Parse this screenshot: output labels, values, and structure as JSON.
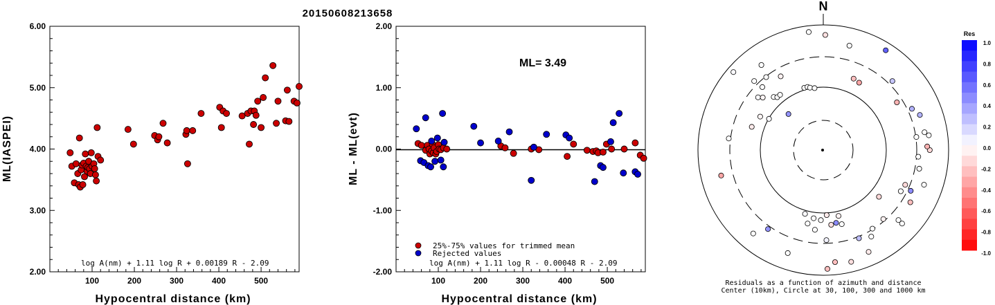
{
  "title": "20150608213658",
  "chart_data": [
    {
      "type": "scatter",
      "xlabel": "Hypocentral distance (km)",
      "ylabel": "ML(IASPEI)",
      "xlim": [
        0,
        590
      ],
      "ylim": [
        2.0,
        6.0
      ],
      "yticks": [
        "2.00",
        "3.00",
        "4.00",
        "5.00",
        "6.00"
      ],
      "xticks": [
        "100",
        "200",
        "300",
        "400",
        "500"
      ],
      "grid": false,
      "formula": "log A(nm) + 1.11 log R + 0.00189 R - 2.09",
      "marker_color": "#cc0000",
      "series": [
        {
          "points": [
            [
              48,
              3.94
            ],
            [
              52,
              3.72
            ],
            [
              58,
              3.45
            ],
            [
              62,
              3.76
            ],
            [
              66,
              3.6
            ],
            [
              68,
              3.42
            ],
            [
              70,
              4.18
            ],
            [
              72,
              3.38
            ],
            [
              74,
              3.66
            ],
            [
              76,
              3.74
            ],
            [
              78,
              3.42
            ],
            [
              80,
              3.77
            ],
            [
              82,
              3.55
            ],
            [
              84,
              3.92
            ],
            [
              86,
              3.72
            ],
            [
              88,
              3.64
            ],
            [
              90,
              3.7
            ],
            [
              92,
              3.8
            ],
            [
              94,
              3.68
            ],
            [
              96,
              3.6
            ],
            [
              98,
              3.94
            ],
            [
              100,
              3.72
            ],
            [
              104,
              3.76
            ],
            [
              106,
              3.68
            ],
            [
              108,
              3.58
            ],
            [
              110,
              3.48
            ],
            [
              112,
              4.35
            ],
            [
              114,
              3.88
            ],
            [
              120,
              3.82
            ],
            [
              185,
              4.32
            ],
            [
              198,
              4.08
            ],
            [
              248,
              4.22
            ],
            [
              255,
              4.15
            ],
            [
              258,
              4.2
            ],
            [
              268,
              4.42
            ],
            [
              278,
              4.1
            ],
            [
              322,
              4.24
            ],
            [
              324,
              4.3
            ],
            [
              326,
              3.76
            ],
            [
              338,
              4.3
            ],
            [
              358,
              4.58
            ],
            [
              402,
              4.68
            ],
            [
              406,
              4.35
            ],
            [
              410,
              4.62
            ],
            [
              418,
              4.58
            ],
            [
              455,
              4.54
            ],
            [
              468,
              4.58
            ],
            [
              472,
              4.08
            ],
            [
              476,
              4.62
            ],
            [
              482,
              4.4
            ],
            [
              484,
              4.62
            ],
            [
              488,
              4.55
            ],
            [
              492,
              4.78
            ],
            [
              500,
              4.35
            ],
            [
              505,
              4.84
            ],
            [
              510,
              5.16
            ],
            [
              528,
              5.36
            ],
            [
              536,
              4.42
            ],
            [
              540,
              4.78
            ],
            [
              558,
              4.46
            ],
            [
              562,
              4.96
            ],
            [
              566,
              4.45
            ],
            [
              578,
              4.78
            ],
            [
              585,
              4.75
            ],
            [
              590,
              5.02
            ]
          ]
        }
      ]
    },
    {
      "type": "scatter",
      "xlabel": "Hypocentral distance (km)",
      "ylabel": "ML - ML(evt)",
      "xlim": [
        0,
        590
      ],
      "ylim": [
        -2.0,
        2.0
      ],
      "yticks": [
        "-2.00",
        "-1.00",
        "0.00",
        "1.00",
        "2.00"
      ],
      "xticks": [
        "100",
        "200",
        "300",
        "400",
        "500"
      ],
      "grid": false,
      "reference_line": 0.0,
      "annotation": "ML= 3.49",
      "formula": "log A(nm) + 1.11 log R - 0.00048 R - 2.09",
      "legend": [
        {
          "label": "25%-75% values for trimmed mean",
          "color": "#cc0000"
        },
        {
          "label": "Rejected values",
          "color": "#0000cc"
        }
      ],
      "series": [
        {
          "name": "25%-75% values for trimmed mean",
          "color": "#cc0000",
          "points": [
            [
              52,
              0.09
            ],
            [
              60,
              0.06
            ],
            [
              70,
              -0.02
            ],
            [
              74,
              0.06
            ],
            [
              78,
              0.0
            ],
            [
              80,
              -0.08
            ],
            [
              84,
              -0.03
            ],
            [
              86,
              0.08
            ],
            [
              88,
              -0.06
            ],
            [
              90,
              0.02
            ],
            [
              94,
              -0.08
            ],
            [
              96,
              -0.04
            ],
            [
              100,
              0.07
            ],
            [
              102,
              0.0
            ],
            [
              106,
              -0.01
            ],
            [
              112,
              0.02
            ],
            [
              120,
              0.0
            ],
            [
              248,
              0.05
            ],
            [
              258,
              0.02
            ],
            [
              278,
              -0.07
            ],
            [
              320,
              0.0
            ],
            [
              326,
              0.03
            ],
            [
              338,
              -0.01
            ],
            [
              405,
              -0.12
            ],
            [
              420,
              0.08
            ],
            [
              452,
              -0.02
            ],
            [
              466,
              -0.04
            ],
            [
              474,
              -0.03
            ],
            [
              478,
              -0.06
            ],
            [
              490,
              -0.05
            ],
            [
              498,
              0.08
            ],
            [
              510,
              0.0
            ],
            [
              540,
              0.0
            ],
            [
              566,
              0.1
            ],
            [
              578,
              -0.1
            ],
            [
              586,
              -0.15
            ]
          ]
        },
        {
          "name": "Rejected values",
          "color": "#0000cc",
          "points": [
            [
              48,
              0.33
            ],
            [
              58,
              -0.19
            ],
            [
              66,
              -0.22
            ],
            [
              70,
              0.51
            ],
            [
              76,
              -0.27
            ],
            [
              82,
              -0.29
            ],
            [
              84,
              0.13
            ],
            [
              92,
              -0.2
            ],
            [
              98,
              0.18
            ],
            [
              106,
              -0.18
            ],
            [
              110,
              0.58
            ],
            [
              112,
              -0.29
            ],
            [
              114,
              0.11
            ],
            [
              184,
              0.37
            ],
            [
              200,
              0.1
            ],
            [
              242,
              0.13
            ],
            [
              268,
              0.28
            ],
            [
              320,
              -0.51
            ],
            [
              326,
              0.03
            ],
            [
              356,
              0.24
            ],
            [
              402,
              0.23
            ],
            [
              410,
              0.18
            ],
            [
              470,
              -0.53
            ],
            [
              484,
              -0.27
            ],
            [
              490,
              -0.3
            ],
            [
              508,
              0.12
            ],
            [
              514,
              0.43
            ],
            [
              528,
              0.58
            ],
            [
              538,
              -0.39
            ],
            [
              566,
              -0.37
            ],
            [
              572,
              -0.41
            ]
          ]
        }
      ]
    },
    {
      "type": "scatter",
      "subtype": "polar residuals",
      "north_label": "N",
      "caption_line1": "Residuals as a function of azimuth and distance",
      "caption_line2": "Center (10km), Circle at 30, 100, 300 and 1000 km",
      "rings_km": [
        30,
        100,
        300,
        1000
      ],
      "colorbar": {
        "title": "Res",
        "labels": [
          "1.0",
          "0.8",
          "0.6",
          "0.4",
          "0.2",
          "0.0",
          "-0.2",
          "-0.4",
          "-0.6",
          "-0.8",
          "-1.0"
        ]
      },
      "stations": [
        [
          -7,
          0.95,
          0.0
        ],
        [
          1,
          0.92,
          -0.12
        ],
        [
          32,
          0.94,
          0.62
        ],
        [
          -49,
          0.95,
          0.02
        ],
        [
          -45,
          0.78,
          0.0
        ],
        [
          -36,
          0.84,
          0.0
        ],
        [
          -51,
          0.67,
          0.02
        ],
        [
          -49,
          0.64,
          -0.04
        ],
        [
          -43,
          0.58,
          0.0
        ],
        [
          -41,
          0.56,
          0.0
        ],
        [
          -38,
          0.56,
          0.0
        ],
        [
          -17,
          0.52,
          0.0
        ],
        [
          -14,
          0.52,
          0.0
        ],
        [
          -12,
          0.51,
          0.0
        ],
        [
          -8,
          0.5,
          0.0
        ],
        [
          -30,
          0.68,
          -0.05
        ],
        [
          -38,
          0.74,
          0.0
        ],
        [
          -44,
          0.7,
          0.0
        ],
        [
          -72,
          0.6,
          -0.08
        ],
        [
          -60,
          0.5,
          0.02
        ],
        [
          -62,
          0.57,
          -0.04
        ],
        [
          -44,
          0.4,
          0.42
        ],
        [
          -83,
          0.76,
          0.0
        ],
        [
          -104,
          0.84,
          -0.35
        ],
        [
          -140,
          0.87,
          0.0
        ],
        [
          -145,
          0.77,
          0.42
        ],
        [
          -161,
          0.87,
          0.0
        ],
        [
          -164,
          0.53,
          0.02
        ],
        [
          -168,
          0.6,
          0.0
        ],
        [
          -174,
          0.64,
          0.0
        ],
        [
          -172,
          0.55,
          0.0
        ],
        [
          -178,
          0.56,
          0.0
        ],
        [
          177,
          0.52,
          -0.08
        ],
        [
          174,
          0.6,
          -0.12
        ],
        [
          170,
          0.59,
          0.45
        ],
        [
          178,
          0.72,
          0.05
        ],
        [
          167,
          0.54,
          -0.05
        ],
        [
          166,
          0.61,
          0.0
        ],
        [
          174,
          0.9,
          -0.25
        ],
        [
          178,
          0.95,
          -0.25
        ],
        [
          166,
          0.92,
          -0.12
        ],
        [
          156,
          0.89,
          -0.08
        ],
        [
          151,
          0.79,
          0.0
        ],
        [
          148,
          0.74,
          0.0
        ],
        [
          158,
          0.76,
          0.25
        ],
        [
          139,
          0.73,
          -0.05
        ],
        [
          133,
          0.82,
          0.0
        ],
        [
          133,
          0.86,
          0.0
        ],
        [
          121,
          0.81,
          -0.25
        ],
        [
          118,
          0.7,
          0.0
        ],
        [
          113,
          0.71,
          -0.15
        ],
        [
          115,
          0.77,
          0.45
        ],
        [
          109,
          0.85,
          0.0
        ],
        [
          101,
          0.78,
          0.0
        ],
        [
          94,
          0.76,
          0.0
        ],
        [
          90,
          0.85,
          -0.15
        ],
        [
          88,
          0.83,
          -0.3
        ],
        [
          82,
          0.75,
          0.0
        ],
        [
          82,
          0.85,
          0.0
        ],
        [
          80,
          0.82,
          0.0
        ],
        [
          70,
          0.82,
          0.3
        ],
        [
          65,
          0.78,
          0.3
        ],
        [
          57,
          0.7,
          -0.3
        ],
        [
          45,
          0.78,
          0.22
        ],
        [
          23,
          0.62,
          -0.25
        ],
        [
          28,
          0.61,
          -0.35
        ],
        [
          130,
          0.58,
          -0.15
        ],
        [
          14,
          0.86,
          0.0
        ]
      ]
    }
  ]
}
